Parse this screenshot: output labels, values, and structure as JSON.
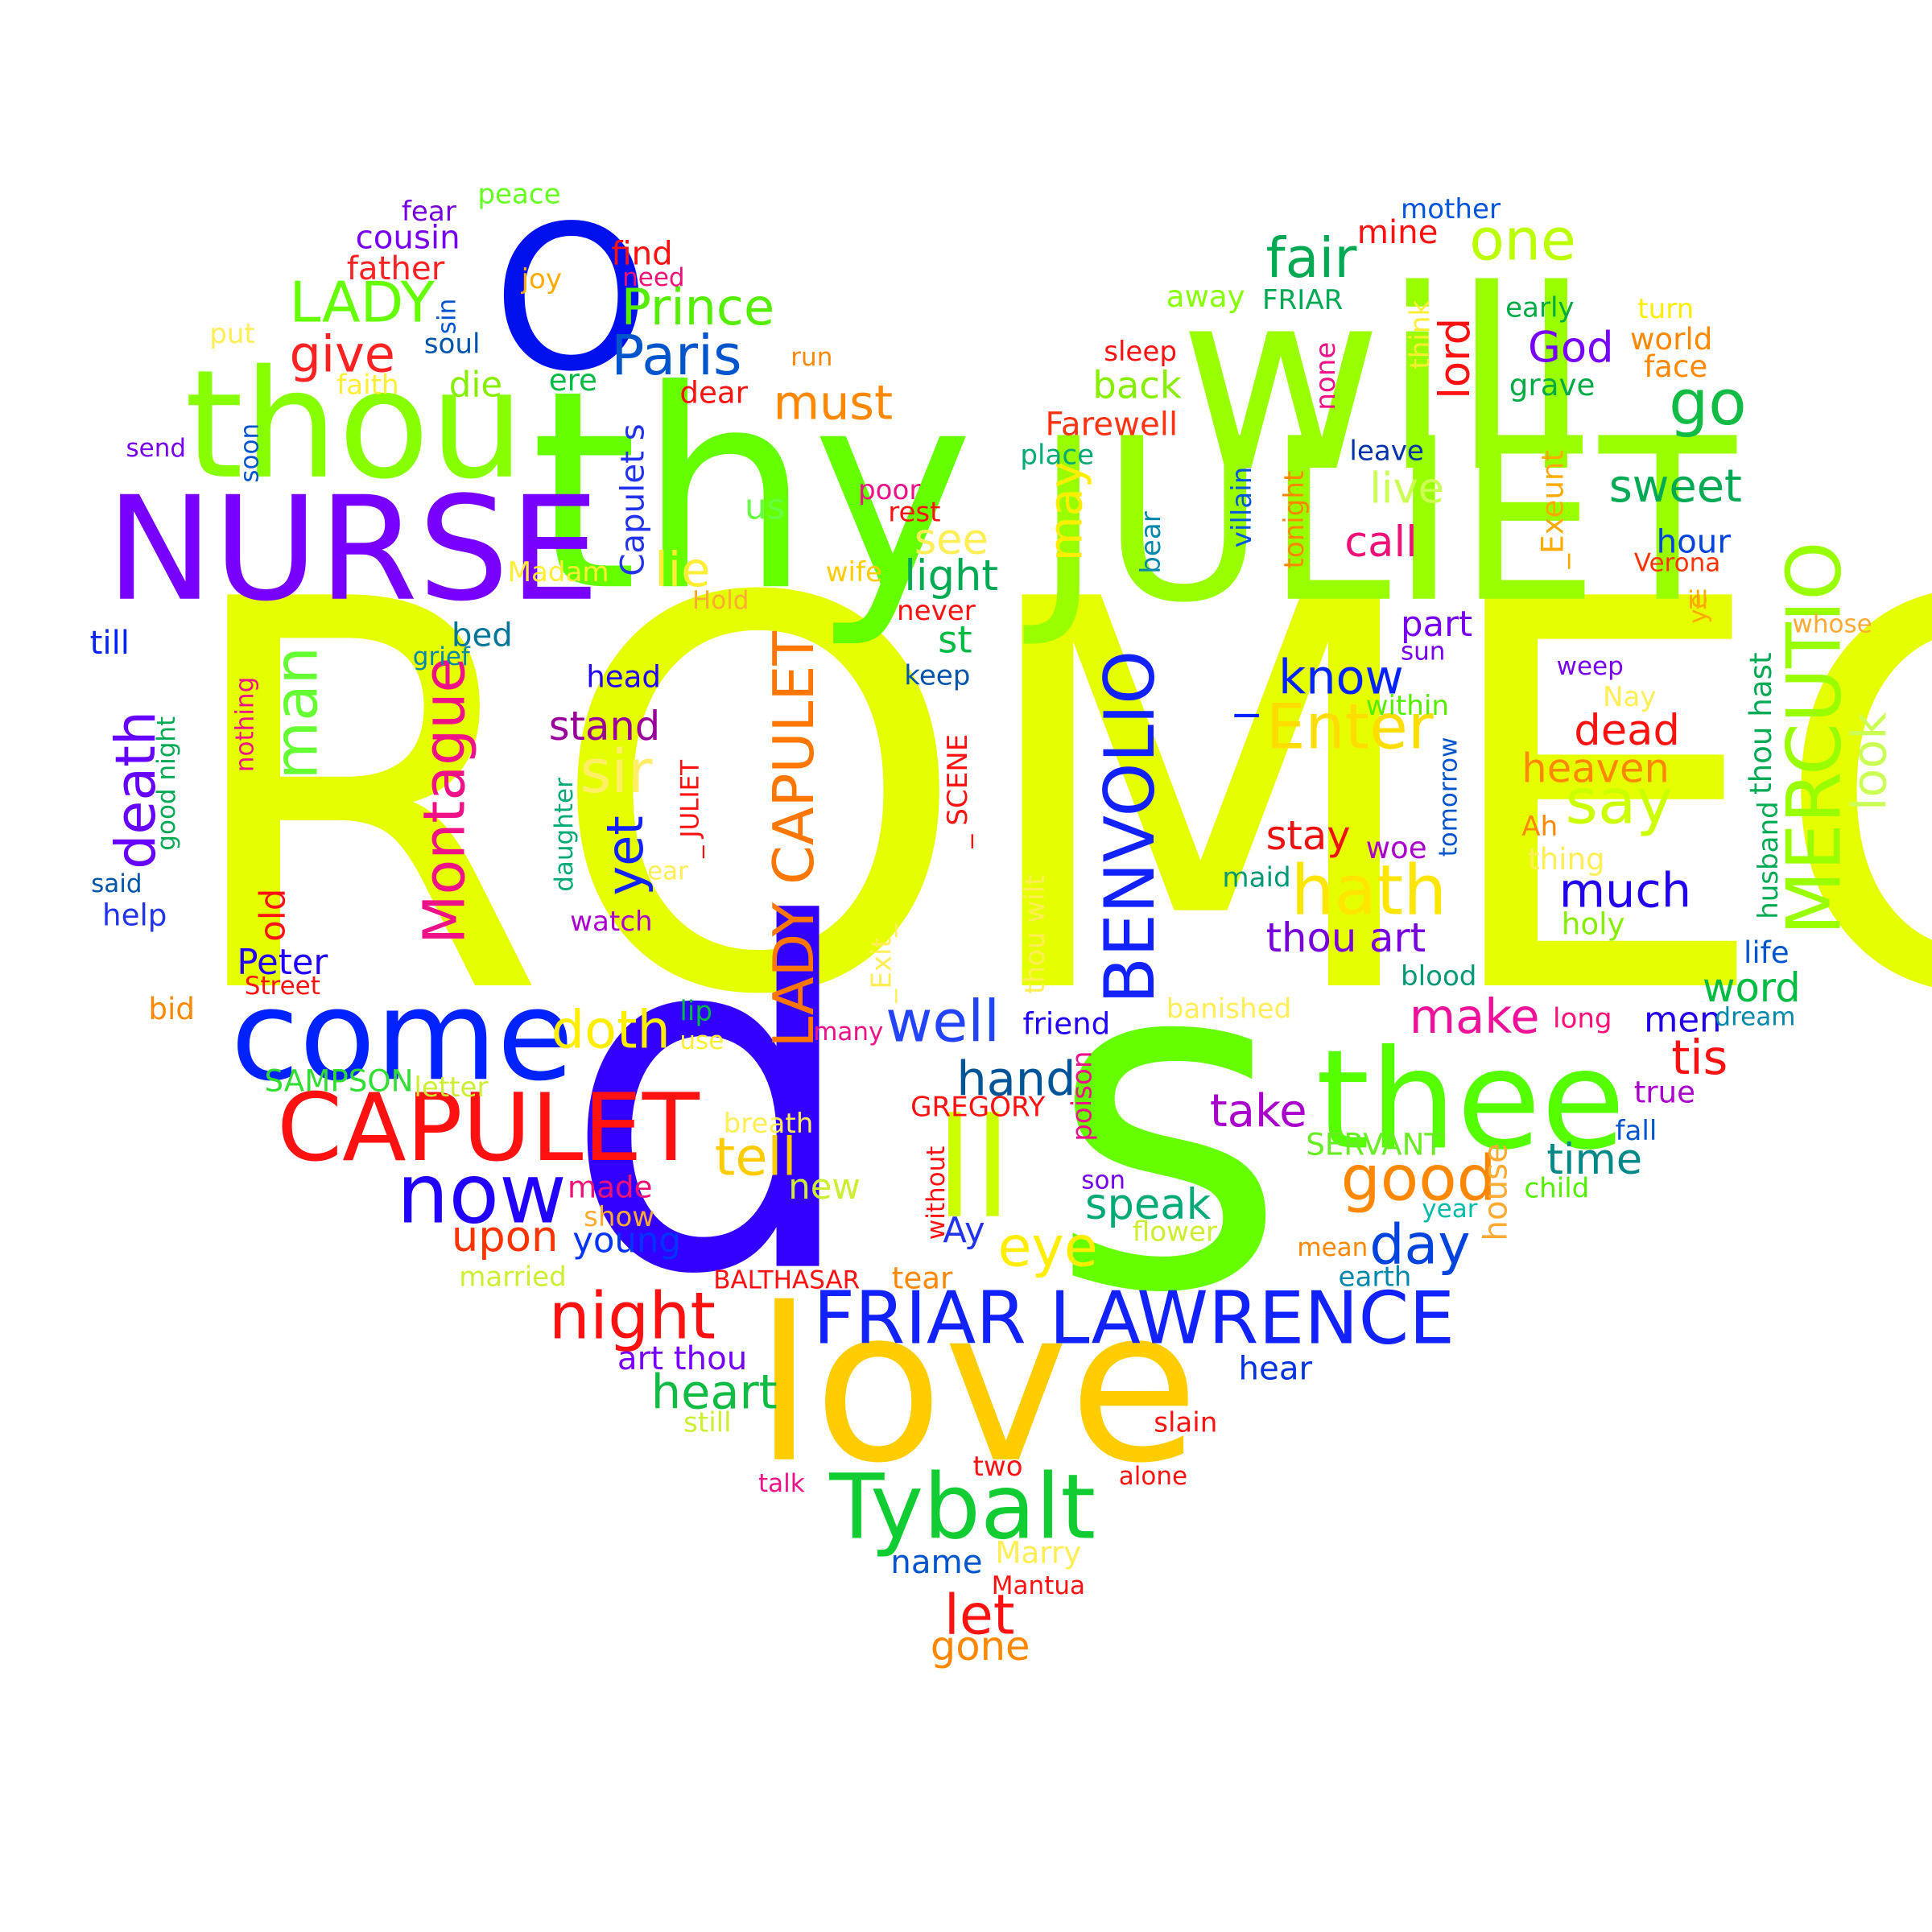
{
  "words": [
    {
      "text": "ROMEO",
      "color": "#e6ff00"
    },
    {
      "text": "s",
      "color": "#66ff00"
    },
    {
      "text": "d",
      "color": "#3300ff"
    },
    {
      "text": "JULIET",
      "color": "#99ff00"
    },
    {
      "text": "will",
      "color": "#99ff00"
    },
    {
      "text": "thy",
      "color": "#66ff00"
    },
    {
      "text": "O",
      "color": "#0011ee"
    },
    {
      "text": "thou",
      "color": "#88ff00"
    },
    {
      "text": "NURSE",
      "color": "#7700ff"
    },
    {
      "text": "love",
      "color": "#ffcc00"
    },
    {
      "text": "thee",
      "color": "#55ff00"
    },
    {
      "text": "come",
      "color": "#0022ff"
    },
    {
      "text": "ll",
      "color": "#ccff00"
    },
    {
      "text": "CAPULET",
      "color": "#ff1111"
    },
    {
      "text": "MERCUTIO",
      "color": "#99ff00"
    },
    {
      "text": "BENVOLIO",
      "color": "#1122ff"
    },
    {
      "text": "FRIAR LAWRENCE",
      "color": "#1122ff"
    },
    {
      "text": "Tybalt",
      "color": "#11cc33"
    },
    {
      "text": "LADY CAPULET",
      "color": "#ff7700"
    },
    {
      "text": "now",
      "color": "#2200ff"
    },
    {
      "text": "night",
      "color": "#ff1111"
    },
    {
      "text": "Montague",
      "color": "#ee1188"
    },
    {
      "text": "death",
      "color": "#6600ff"
    },
    {
      "text": "good",
      "color": "#ff8800"
    },
    {
      "text": "man",
      "color": "#66ff33"
    },
    {
      "text": "hath",
      "color": "#ffe600"
    },
    {
      "text": "Enter",
      "color": "#ffdd00"
    },
    {
      "text": "go",
      "color": "#11bb44"
    },
    {
      "text": "one",
      "color": "#bbff00"
    },
    {
      "text": "fair",
      "color": "#00aa55"
    },
    {
      "text": "well",
      "color": "#2244ff"
    },
    {
      "text": "say",
      "color": "#ccff00"
    },
    {
      "text": "LADY",
      "color": "#66ff00"
    },
    {
      "text": "Prince",
      "color": "#55ee00"
    },
    {
      "text": "Paris",
      "color": "#0055cc"
    },
    {
      "text": "give",
      "color": "#ff2222"
    },
    {
      "text": "look",
      "color": "#ccff55"
    },
    {
      "text": "much",
      "color": "#2200ee"
    },
    {
      "text": "doth",
      "color": "#ffee00"
    },
    {
      "text": "tell",
      "color": "#ffcc00"
    },
    {
      "text": "sir",
      "color": "#ffee66"
    },
    {
      "text": "yet",
      "color": "#1122ff"
    },
    {
      "text": "may",
      "color": "#ffee00"
    },
    {
      "text": "eye",
      "color": "#ffee00"
    },
    {
      "text": "day",
      "color": "#0044dd"
    },
    {
      "text": "make",
      "color": "#ee1199"
    },
    {
      "text": "sweet",
      "color": "#00aa55"
    },
    {
      "text": "know",
      "color": "#0022ff"
    },
    {
      "text": "_",
      "color": "#0022ff"
    },
    {
      "text": "hand",
      "color": "#005599"
    },
    {
      "text": "take",
      "color": "#aa00cc"
    },
    {
      "text": "must",
      "color": "#ff8800"
    },
    {
      "text": "heart",
      "color": "#11bb44"
    },
    {
      "text": "speak",
      "color": "#00aa77"
    },
    {
      "text": "call",
      "color": "#ee1177"
    },
    {
      "text": "live",
      "color": "#ccff55"
    },
    {
      "text": "upon",
      "color": "#ff3300"
    },
    {
      "text": "let",
      "color": "#ff1111"
    },
    {
      "text": "stand",
      "color": "#990099"
    },
    {
      "text": "lie",
      "color": "#ffee33"
    },
    {
      "text": "see",
      "color": "#ffee55"
    },
    {
      "text": "light",
      "color": "#00aa55"
    },
    {
      "text": "thou art",
      "color": "#7700dd"
    },
    {
      "text": "stay",
      "color": "#ee1111"
    },
    {
      "text": "dead",
      "color": "#ff1111"
    },
    {
      "text": "heaven",
      "color": "#ff8800"
    },
    {
      "text": "tis",
      "color": "#ff1111"
    },
    {
      "text": "time",
      "color": "#008888"
    },
    {
      "text": "word",
      "color": "#00bb44"
    },
    {
      "text": "God",
      "color": "#7700ff"
    },
    {
      "text": "lord",
      "color": "#ff1111"
    },
    {
      "text": "back",
      "color": "#88ee00"
    },
    {
      "text": "Farewell",
      "color": "#ff3311"
    },
    {
      "text": "us",
      "color": "#66ff44"
    },
    {
      "text": "Capulet s",
      "color": "#2233ee"
    },
    {
      "text": "Peter",
      "color": "#2200ff"
    },
    {
      "text": "bed",
      "color": "#007799"
    },
    {
      "text": "old",
      "color": "#ff1111"
    },
    {
      "text": "hour",
      "color": "#0044dd"
    },
    {
      "text": "part",
      "color": "#7700ee"
    },
    {
      "text": "Ay",
      "color": "#2233ee"
    },
    {
      "text": "men",
      "color": "#2200ee"
    },
    {
      "text": "die",
      "color": "#88ee00"
    },
    {
      "text": "st",
      "color": "#00bb44"
    },
    {
      "text": "young",
      "color": "#0033ff"
    },
    {
      "text": "art thou",
      "color": "#7700ff"
    },
    {
      "text": "_Exeunt",
      "color": "#ffaa00"
    },
    {
      "text": "find",
      "color": "#ff1111"
    },
    {
      "text": "cousin",
      "color": "#7700ee"
    },
    {
      "text": "father",
      "color": "#ff2222"
    },
    {
      "text": "fear",
      "color": "#7700dd"
    },
    {
      "text": "peace",
      "color": "#66ff22"
    },
    {
      "text": "mine",
      "color": "#ff1111"
    },
    {
      "text": "mother",
      "color": "#0055dd"
    },
    {
      "text": "away",
      "color": "#88ff00"
    },
    {
      "text": "FRIAR",
      "color": "#00aa55"
    },
    {
      "text": "early",
      "color": "#00aa44"
    },
    {
      "text": "turn",
      "color": "#ffee00"
    },
    {
      "text": "world",
      "color": "#ff8800"
    },
    {
      "text": "face",
      "color": "#ff8800"
    },
    {
      "text": "grave",
      "color": "#00aa44"
    },
    {
      "text": "sleep",
      "color": "#ff1111"
    },
    {
      "text": "none",
      "color": "#ee1188"
    },
    {
      "text": "think",
      "color": "#ffee33"
    },
    {
      "text": "leave",
      "color": "#0033aa"
    },
    {
      "text": "place",
      "color": "#00aa77"
    },
    {
      "text": "villain",
      "color": "#0055dd"
    },
    {
      "text": "tonight",
      "color": "#ff8800"
    },
    {
      "text": "bear",
      "color": "#0088aa"
    },
    {
      "text": "Verona",
      "color": "#ff3300"
    },
    {
      "text": "ill",
      "color": "#ffaa00"
    },
    {
      "text": "ye",
      "color": "#ffaa00"
    },
    {
      "text": "whose",
      "color": "#ffaa33"
    },
    {
      "text": "sun",
      "color": "#7700ee"
    },
    {
      "text": "weep",
      "color": "#7700ee"
    },
    {
      "text": "within",
      "color": "#55ee00"
    },
    {
      "text": "Nay",
      "color": "#ffee55"
    },
    {
      "text": "thou hast",
      "color": "#00aa55"
    },
    {
      "text": "tomorrow",
      "color": "#0055cc"
    },
    {
      "text": "husband",
      "color": "#00aa55"
    },
    {
      "text": "Ah",
      "color": "#ff8800"
    },
    {
      "text": "woe",
      "color": "#aa00cc"
    },
    {
      "text": "thing",
      "color": "#ffee55"
    },
    {
      "text": "holy",
      "color": "#88ee00"
    },
    {
      "text": "maid",
      "color": "#009977"
    },
    {
      "text": "blood",
      "color": "#009977"
    },
    {
      "text": "life",
      "color": "#0055cc"
    },
    {
      "text": "long",
      "color": "#ff1177"
    },
    {
      "text": "dream",
      "color": "#0088aa"
    },
    {
      "text": "true",
      "color": "#aa00cc"
    },
    {
      "text": "fall",
      "color": "#0055cc"
    },
    {
      "text": "child",
      "color": "#55ee00"
    },
    {
      "text": "house",
      "color": "#ffaa33"
    },
    {
      "text": "year",
      "color": "#00bbaa"
    },
    {
      "text": "mean",
      "color": "#ff8800"
    },
    {
      "text": "earth",
      "color": "#0088aa"
    },
    {
      "text": "SERVANT",
      "color": "#66ee22"
    },
    {
      "text": "flower",
      "color": "#ccee33"
    },
    {
      "text": "son",
      "color": "#7700ee"
    },
    {
      "text": "banished",
      "color": "#ffee55"
    },
    {
      "text": "friend",
      "color": "#2200ff"
    },
    {
      "text": "poison",
      "color": "#ee1188"
    },
    {
      "text": "thou wilt",
      "color": "#ffee55"
    },
    {
      "text": "_Exit_",
      "color": "#ffee55"
    },
    {
      "text": "_ SCENE",
      "color": "#ff1111"
    },
    {
      "text": "keep",
      "color": "#0055aa"
    },
    {
      "text": "never",
      "color": "#ff1111"
    },
    {
      "text": "wife",
      "color": "#ffcc00"
    },
    {
      "text": "rest",
      "color": "#ff1111"
    },
    {
      "text": "poor",
      "color": "#ee1188"
    },
    {
      "text": "dear",
      "color": "#ff1111"
    },
    {
      "text": "run",
      "color": "#ff8800"
    },
    {
      "text": "ere",
      "color": "#00bb44"
    },
    {
      "text": "need",
      "color": "#ee1177"
    },
    {
      "text": "joy",
      "color": "#ffaa00"
    },
    {
      "text": "sin",
      "color": "#0055cc"
    },
    {
      "text": "soul",
      "color": "#0055aa"
    },
    {
      "text": "faith",
      "color": "#ffee33"
    },
    {
      "text": "put",
      "color": "#ffee55"
    },
    {
      "text": "send",
      "color": "#7700ee"
    },
    {
      "text": "soon",
      "color": "#0055cc"
    },
    {
      "text": "Madam",
      "color": "#ffee33"
    },
    {
      "text": "Hold",
      "color": "#ffaa33"
    },
    {
      "text": "till",
      "color": "#0022ff"
    },
    {
      "text": "grief",
      "color": "#0088aa"
    },
    {
      "text": "head",
      "color": "#2200ff"
    },
    {
      "text": "nothing",
      "color": "#ee1188"
    },
    {
      "text": "good night",
      "color": "#00aa55"
    },
    {
      "text": "said",
      "color": "#0055aa"
    },
    {
      "text": "help",
      "color": "#2233ee"
    },
    {
      "text": "daughter",
      "color": "#00aa77"
    },
    {
      "text": "_ JULIET",
      "color": "#ff1111"
    },
    {
      "text": "ear",
      "color": "#ffee55"
    },
    {
      "text": "watch",
      "color": "#aa00cc"
    },
    {
      "text": "bid",
      "color": "#ff8800"
    },
    {
      "text": "Street",
      "color": "#ff1111"
    },
    {
      "text": "lip",
      "color": "#00bb44"
    },
    {
      "text": "use",
      "color": "#ffee33"
    },
    {
      "text": "many",
      "color": "#ee1188"
    },
    {
      "text": "SAMPSON",
      "color": "#33dd33"
    },
    {
      "text": "letter",
      "color": "#ccee33"
    },
    {
      "text": "breath",
      "color": "#ffee55"
    },
    {
      "text": "GREGORY",
      "color": "#ff1111"
    },
    {
      "text": "new",
      "color": "#ccee33"
    },
    {
      "text": "made",
      "color": "#ee1177"
    },
    {
      "text": "show",
      "color": "#ffaa33"
    },
    {
      "text": "without",
      "color": "#ff1111"
    },
    {
      "text": "married",
      "color": "#ccee33"
    },
    {
      "text": "BALTHASAR",
      "color": "#ff1111"
    },
    {
      "text": "tear",
      "color": "#ff8800"
    },
    {
      "text": "hear",
      "color": "#0033dd"
    },
    {
      "text": "still",
      "color": "#ccee33"
    },
    {
      "text": "slain",
      "color": "#ff1111"
    },
    {
      "text": "two",
      "color": "#ff1111"
    },
    {
      "text": "alone",
      "color": "#ff1111"
    },
    {
      "text": "talk",
      "color": "#ee1188"
    },
    {
      "text": "name",
      "color": "#0055cc"
    },
    {
      "text": "Marry",
      "color": "#ffee55"
    },
    {
      "text": "Mantua",
      "color": "#ff1111"
    },
    {
      "text": "gone",
      "color": "#ff8800"
    }
  ]
}
